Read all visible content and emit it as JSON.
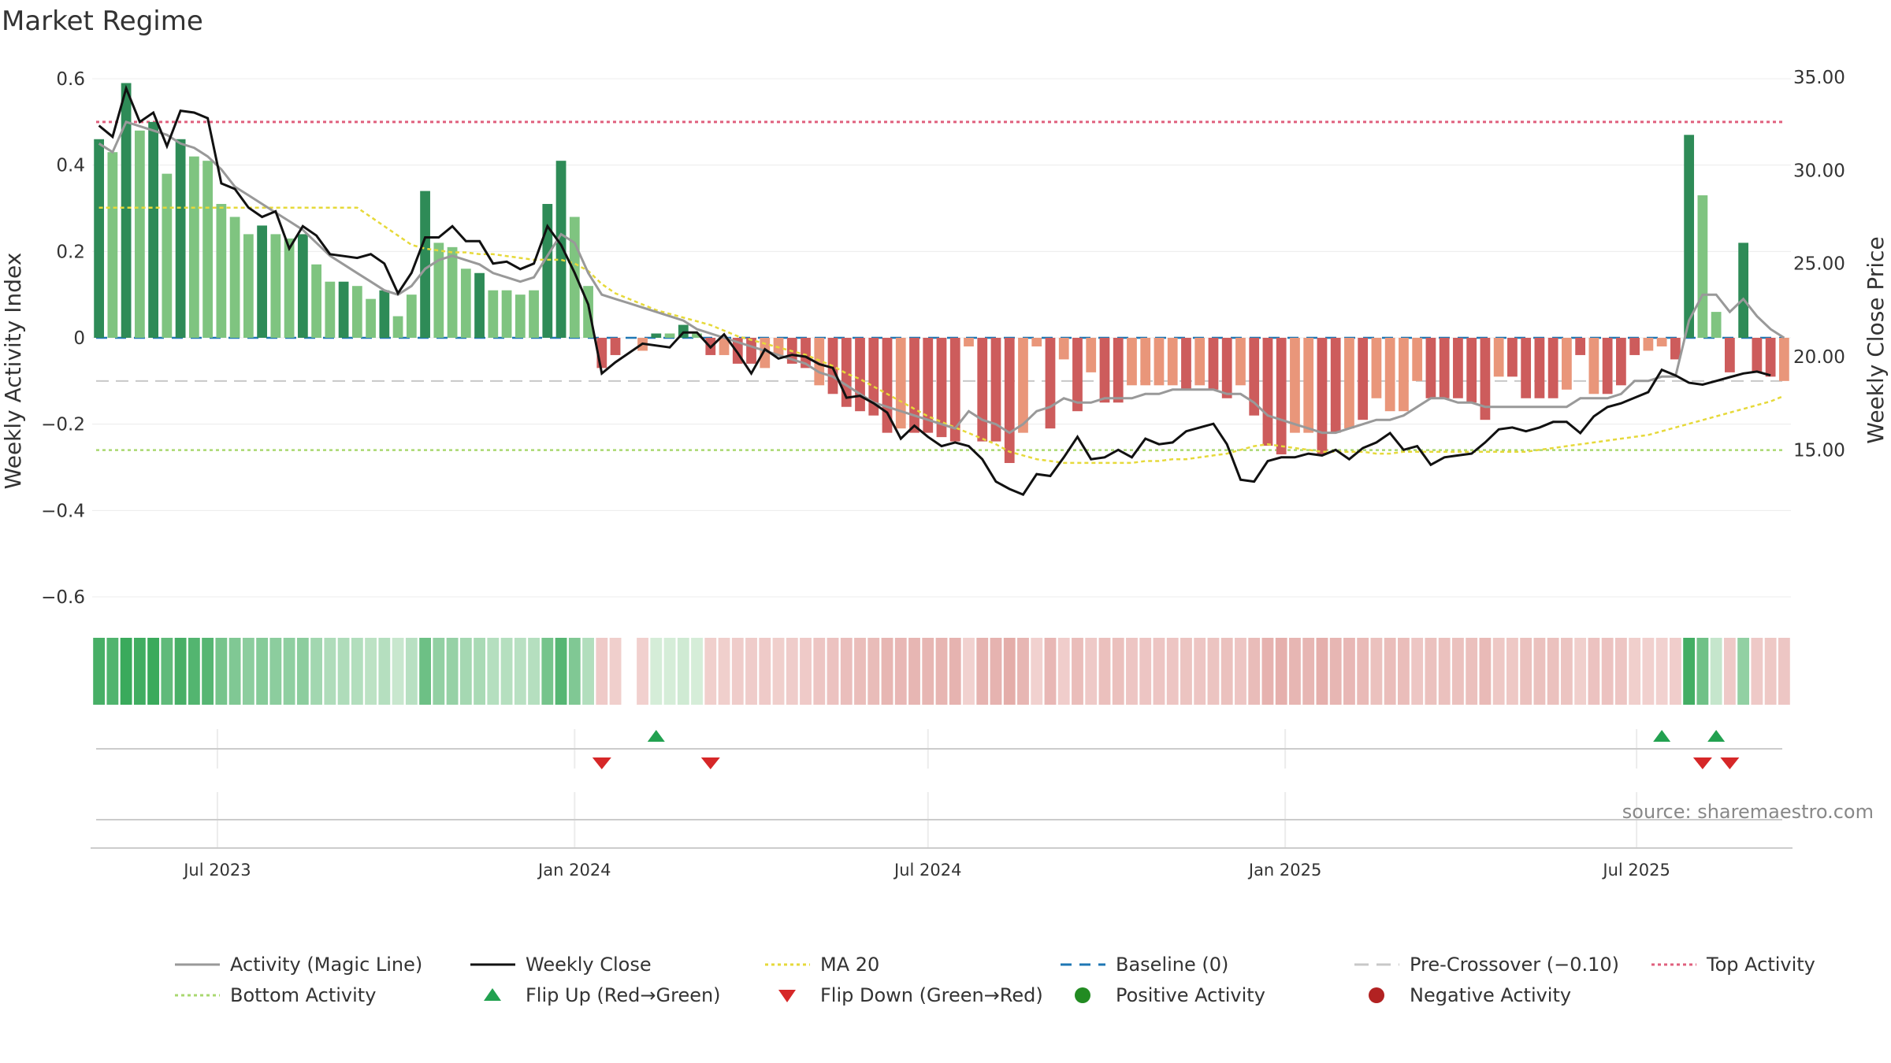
{
  "title": "Market Regime",
  "source": "source: sharemaestro.com",
  "colors": {
    "pos_strong": "#2e8b57",
    "pos_weak": "#7fc480",
    "neg_strong": "#cd5c5c",
    "neg_weak": "#e9967a",
    "magic_line": "#999999",
    "close": "#111111",
    "ma20": "#e6d93a",
    "baseline": "#1f77b4",
    "pre_crossover": "#c8c8c8",
    "top_activity": "#e0607e",
    "bottom_activity": "#a9d870",
    "flip_up": "#22a150",
    "flip_down": "#d62728",
    "positive_dot": "#228b22",
    "negative_dot": "#b22222"
  },
  "chart_data": {
    "type": "bar",
    "title": "Market Regime",
    "left_axis": {
      "label": "Weekly Activity Index",
      "range": [
        -0.6,
        0.6
      ],
      "ticks": [
        {
          "value": 0.6,
          "label": "0.6"
        },
        {
          "value": 0.4,
          "label": "0.4"
        },
        {
          "value": 0.2,
          "label": "0.2"
        },
        {
          "value": 0,
          "label": "0"
        },
        {
          "value": -0.2,
          "label": "−0.2"
        },
        {
          "value": -0.4,
          "label": "−0.4"
        },
        {
          "value": -0.6,
          "label": "−0.6"
        }
      ]
    },
    "right_axis": {
      "label": "Weekly Close Price",
      "range": [
        11.0,
        35.0
      ],
      "ticks": [
        {
          "value": 35,
          "label": "35.00"
        },
        {
          "value": 30,
          "label": "30.00"
        },
        {
          "value": 25,
          "label": "25.00"
        },
        {
          "value": 20,
          "label": "20.00"
        },
        {
          "value": 15,
          "label": "15.00"
        }
      ]
    },
    "x_axis": {
      "start": "2023-05-01",
      "weeks": 123,
      "ticks": [
        {
          "date": "2023-07-01",
          "label": "Jul 2023"
        },
        {
          "date": "2024-01-01",
          "label": "Jan 2024"
        },
        {
          "date": "2024-07-01",
          "label": "Jul 2024"
        },
        {
          "date": "2025-01-01",
          "label": "Jan 2025"
        },
        {
          "date": "2025-07-01",
          "label": "Jul 2025"
        }
      ]
    },
    "reference_lines": {
      "top_activity": 0.5,
      "bottom_activity": -0.26,
      "baseline": 0,
      "pre_crossover": -0.1
    },
    "activity": [
      0.46,
      0.43,
      0.59,
      0.48,
      0.5,
      0.38,
      0.46,
      0.42,
      0.41,
      0.31,
      0.28,
      0.24,
      0.26,
      0.24,
      0.23,
      0.24,
      0.17,
      0.13,
      0.13,
      0.12,
      0.09,
      0.11,
      0.05,
      0.1,
      0.34,
      0.22,
      0.21,
      0.16,
      0.15,
      0.11,
      0.11,
      0.1,
      0.11,
      0.31,
      0.41,
      0.28,
      0.12,
      -0.07,
      -0.04,
      0,
      -0.03,
      0.01,
      0.01,
      0.03,
      0.01,
      -0.04,
      -0.04,
      -0.06,
      -0.06,
      -0.07,
      -0.04,
      -0.06,
      -0.07,
      -0.11,
      -0.13,
      -0.16,
      -0.17,
      -0.18,
      -0.22,
      -0.21,
      -0.22,
      -0.22,
      -0.23,
      -0.24,
      -0.02,
      -0.24,
      -0.24,
      -0.29,
      -0.22,
      -0.02,
      -0.21,
      -0.05,
      -0.17,
      -0.08,
      -0.15,
      -0.15,
      -0.11,
      -0.11,
      -0.11,
      -0.11,
      -0.12,
      -0.11,
      -0.12,
      -0.14,
      -0.11,
      -0.18,
      -0.25,
      -0.27,
      -0.22,
      -0.22,
      -0.27,
      -0.22,
      -0.21,
      -0.19,
      -0.14,
      -0.17,
      -0.17,
      -0.1,
      -0.14,
      -0.14,
      -0.14,
      -0.15,
      -0.19,
      -0.09,
      -0.09,
      -0.14,
      -0.14,
      -0.14,
      -0.12,
      -0.04,
      -0.13,
      -0.13,
      -0.11,
      -0.04,
      -0.03,
      -0.02,
      -0.05,
      0.47,
      0.33,
      0.06,
      -0.08,
      0.22,
      -0.08,
      -0.09,
      -0.1
    ],
    "activity_strength": [
      1,
      0,
      1,
      0,
      1,
      0,
      1,
      0,
      0,
      0,
      0,
      0,
      1,
      0,
      0,
      1,
      0,
      0,
      1,
      0,
      0,
      1,
      0,
      0,
      1,
      0,
      0,
      0,
      1,
      0,
      0,
      0,
      0,
      1,
      1,
      0,
      0,
      1,
      1,
      0,
      0,
      1,
      0,
      1,
      0,
      1,
      0,
      1,
      1,
      0,
      0,
      1,
      1,
      0,
      1,
      1,
      1,
      1,
      1,
      0,
      1,
      1,
      1,
      1,
      0,
      1,
      1,
      1,
      0,
      0,
      1,
      0,
      1,
      0,
      1,
      1,
      0,
      0,
      0,
      0,
      1,
      0,
      1,
      1,
      0,
      1,
      1,
      1,
      0,
      0,
      1,
      1,
      0,
      1,
      0,
      0,
      0,
      0,
      1,
      1,
      1,
      1,
      1,
      0,
      1,
      1,
      1,
      1,
      0,
      1,
      0,
      1,
      1,
      1,
      0,
      0,
      1,
      1,
      0,
      0,
      1,
      1,
      1,
      1
    ],
    "magic_line": [
      0.45,
      0.43,
      0.5,
      0.49,
      0.48,
      0.47,
      0.45,
      0.44,
      0.42,
      0.39,
      0.35,
      0.33,
      0.31,
      0.29,
      0.27,
      0.25,
      0.22,
      0.19,
      0.17,
      0.15,
      0.13,
      0.11,
      0.1,
      0.12,
      0.16,
      0.18,
      0.19,
      0.18,
      0.17,
      0.15,
      0.14,
      0.13,
      0.14,
      0.19,
      0.24,
      0.22,
      0.15,
      0.1,
      0.09,
      0.08,
      0.07,
      0.06,
      0.05,
      0.04,
      0.02,
      0.01,
      0,
      -0.01,
      -0.02,
      -0.03,
      -0.04,
      -0.05,
      -0.06,
      -0.08,
      -0.09,
      -0.11,
      -0.13,
      -0.15,
      -0.16,
      -0.17,
      -0.18,
      -0.19,
      -0.2,
      -0.21,
      -0.17,
      -0.19,
      -0.2,
      -0.22,
      -0.2,
      -0.17,
      -0.16,
      -0.14,
      -0.15,
      -0.15,
      -0.14,
      -0.14,
      -0.14,
      -0.13,
      -0.13,
      -0.12,
      -0.12,
      -0.12,
      -0.12,
      -0.13,
      -0.13,
      -0.15,
      -0.18,
      -0.19,
      -0.2,
      -0.21,
      -0.22,
      -0.22,
      -0.21,
      -0.2,
      -0.19,
      -0.19,
      -0.18,
      -0.16,
      -0.14,
      -0.14,
      -0.15,
      -0.15,
      -0.16,
      -0.16,
      -0.16,
      -0.16,
      -0.16,
      -0.16,
      -0.16,
      -0.14,
      -0.14,
      -0.14,
      -0.13,
      -0.1,
      -0.1,
      -0.09,
      -0.09,
      0.04,
      0.1,
      0.1,
      0.06,
      0.09,
      0.05,
      0.02,
      0
    ],
    "weekly_close": [
      32.4,
      31.8,
      34.4,
      32.6,
      33.1,
      31.3,
      33.2,
      33.1,
      32.8,
      29.3,
      29.0,
      28.0,
      27.5,
      27.8,
      25.8,
      27.0,
      26.5,
      25.5,
      25.4,
      25.3,
      25.5,
      25.0,
      23.4,
      24.5,
      26.4,
      26.4,
      27.0,
      26.2,
      26.2,
      25.0,
      25.1,
      24.7,
      25.0,
      27.0,
      26.0,
      24.5,
      22.8,
      19.1,
      19.7,
      20.2,
      20.7,
      20.6,
      20.5,
      21.3,
      21.3,
      20.5,
      21.2,
      20.2,
      19.1,
      20.4,
      19.9,
      20.1,
      20.0,
      19.6,
      19.4,
      17.8,
      17.9,
      17.5,
      17.0,
      15.6,
      16.3,
      15.7,
      15.2,
      15.4,
      15.2,
      14.5,
      13.3,
      12.9,
      12.6,
      13.7,
      13.6,
      14.6,
      15.7,
      14.5,
      14.6,
      15.0,
      14.6,
      15.6,
      15.3,
      15.4,
      16.0,
      16.2,
      16.4,
      15.3,
      13.4,
      13.3,
      14.4,
      14.6,
      14.6,
      14.8,
      14.7,
      15.0,
      14.5,
      15.1,
      15.4,
      15.9,
      15.0,
      15.2,
      14.2,
      14.6,
      14.7,
      14.8,
      15.4,
      16.1,
      16.2,
      16.0,
      16.2,
      16.5,
      16.5,
      15.9,
      16.8,
      17.3,
      17.5,
      17.8,
      18.1,
      19.3,
      19.0,
      18.6,
      18.5,
      18.7,
      18.9,
      19.1,
      19.2,
      19.0
    ],
    "ma20": [
      28.0,
      28.0,
      28.0,
      28.0,
      28.0,
      28.0,
      28.0,
      28.0,
      28.0,
      28.0,
      28.0,
      28.0,
      28.0,
      28.0,
      28.0,
      28.0,
      28.0,
      28.0,
      28.0,
      28.0,
      27.5,
      27.0,
      26.5,
      26.0,
      25.8,
      25.7,
      25.6,
      25.6,
      25.5,
      25.5,
      25.4,
      25.3,
      25.2,
      25.2,
      25.2,
      25.0,
      24.6,
      23.9,
      23.4,
      23.1,
      22.8,
      22.5,
      22.3,
      22.1,
      21.9,
      21.7,
      21.4,
      21.1,
      20.9,
      20.7,
      20.5,
      20.3,
      20.1,
      19.8,
      19.5,
      19.1,
      18.8,
      18.4,
      18.0,
      17.6,
      17.2,
      16.8,
      16.5,
      16.2,
      15.9,
      15.6,
      15.3,
      14.9,
      14.7,
      14.5,
      14.4,
      14.3,
      14.3,
      14.3,
      14.3,
      14.3,
      14.3,
      14.4,
      14.4,
      14.5,
      14.5,
      14.6,
      14.7,
      14.8,
      15.0,
      15.2,
      15.3,
      15.2,
      15.1,
      15.0,
      14.9,
      14.9,
      14.9,
      14.9,
      14.8,
      14.8,
      14.9,
      14.9,
      14.9,
      14.9,
      14.9,
      14.9,
      14.9,
      14.9,
      14.9,
      14.9,
      15.0,
      15.1,
      15.2,
      15.3,
      15.4,
      15.5,
      15.6,
      15.7,
      15.8,
      16.0,
      16.2,
      16.4,
      16.6,
      16.8,
      17.0,
      17.2,
      17.4,
      17.6,
      17.9
    ],
    "flip_up_weeks": [
      41,
      115,
      119
    ],
    "flip_down_weeks": [
      37,
      45,
      118,
      120
    ],
    "gap_weeks": [
      39
    ]
  },
  "legend": [
    {
      "label": "Activity (Magic Line)",
      "kind": "solid-line",
      "color_key": "magic_line"
    },
    {
      "label": "Weekly Close",
      "kind": "solid-line",
      "color_key": "close"
    },
    {
      "label": "MA 20",
      "kind": "dotted-line",
      "color_key": "ma20"
    },
    {
      "label": "Baseline (0)",
      "kind": "dashed-line",
      "color_key": "baseline"
    },
    {
      "label": "Pre-Crossover (−0.10)",
      "kind": "long-dash-line",
      "color_key": "pre_crossover"
    },
    {
      "label": "Top Activity",
      "kind": "dotted-line",
      "color_key": "top_activity"
    },
    {
      "label": "Bottom Activity",
      "kind": "dotted-line",
      "color_key": "bottom_activity"
    },
    {
      "label": "Flip Up (Red→Green)",
      "kind": "triangle-up",
      "color_key": "flip_up"
    },
    {
      "label": "Flip Down (Green→Red)",
      "kind": "triangle-down",
      "color_key": "flip_down"
    },
    {
      "label": "Positive Activity",
      "kind": "dot",
      "color_key": "positive_dot"
    },
    {
      "label": "Negative Activity",
      "kind": "dot",
      "color_key": "negative_dot"
    }
  ]
}
